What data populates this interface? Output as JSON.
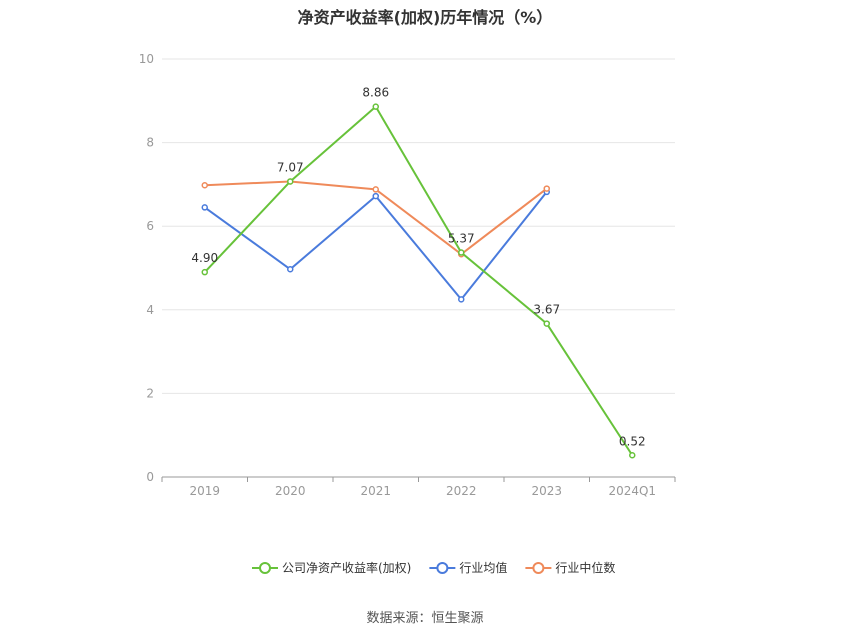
{
  "chart_data": {
    "type": "line",
    "title": "净资产收益率(加权)历年情况（%）",
    "categories": [
      "2019",
      "2020",
      "2021",
      "2022",
      "2023",
      "2024Q1"
    ],
    "ylim": [
      0,
      10
    ],
    "yticks": [
      "0",
      "2",
      "4",
      "6",
      "8",
      "10"
    ],
    "grid": true,
    "legend_position": "bottom",
    "series": [
      {
        "name": "公司净资产收益率(加权)",
        "color": "#67c23a",
        "values": [
          4.9,
          7.07,
          8.86,
          5.37,
          3.67,
          0.52
        ],
        "labels": [
          "4.90",
          "7.07",
          "8.86",
          "5.37",
          "3.67",
          "0.52"
        ]
      },
      {
        "name": "行业均值",
        "color": "#4a7bdc",
        "values": [
          6.45,
          4.97,
          6.72,
          4.25,
          6.82,
          null
        ]
      },
      {
        "name": "行业中位数",
        "color": "#ef8a5a",
        "values": [
          6.98,
          7.07,
          6.88,
          5.33,
          6.9,
          null
        ]
      }
    ]
  },
  "source": "数据来源：恒生聚源"
}
